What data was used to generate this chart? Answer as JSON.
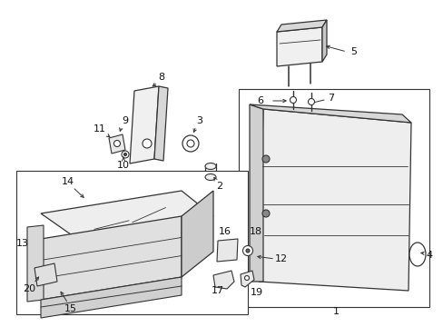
{
  "bg_color": "#ffffff",
  "line_color": "#333333",
  "gray_fill": "#e8e8e8",
  "dark_gray": "#bbbbbb",
  "mid_gray": "#d0d0d0"
}
